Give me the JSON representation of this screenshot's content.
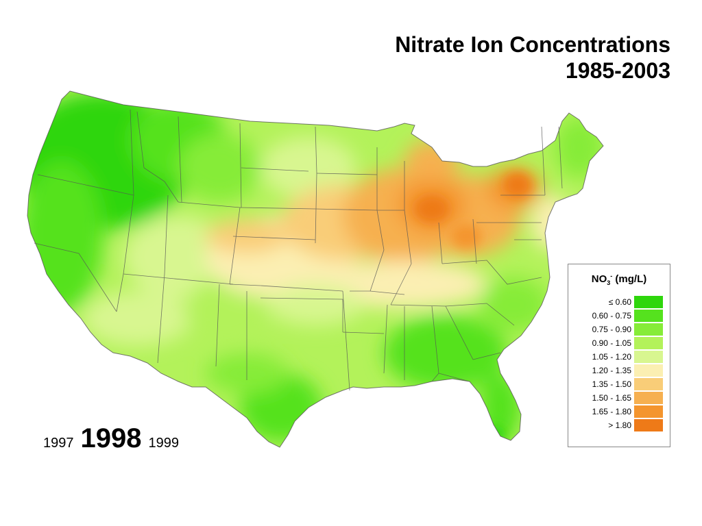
{
  "title": {
    "line1": "Nitrate Ion Concentrations",
    "line2": "1985-2003"
  },
  "legend": {
    "title_main": "NO",
    "title_sub": "3",
    "title_sup": "-",
    "title_unit": "(mg/L)",
    "items": [
      {
        "label": "≤ 0.60",
        "color": "#2ed60c"
      },
      {
        "label": "0.60 - 0.75",
        "color": "#55e21e"
      },
      {
        "label": "0.75 - 0.90",
        "color": "#86ec38"
      },
      {
        "label": "0.90 - 1.05",
        "color": "#b3f25a"
      },
      {
        "label": "1.05 - 1.20",
        "color": "#d8f690"
      },
      {
        "label": "1.20 - 1.35",
        "color": "#fbefb2"
      },
      {
        "label": "1.35 - 1.50",
        "color": "#f9cd78"
      },
      {
        "label": "1.50 - 1.65",
        "color": "#f6b050"
      },
      {
        "label": "1.65 - 1.80",
        "color": "#f4952e"
      },
      {
        "label": "> 1.80",
        "color": "#ee7a18"
      }
    ]
  },
  "years": {
    "previous": "1997",
    "current": "1998",
    "next": "1999"
  }
}
